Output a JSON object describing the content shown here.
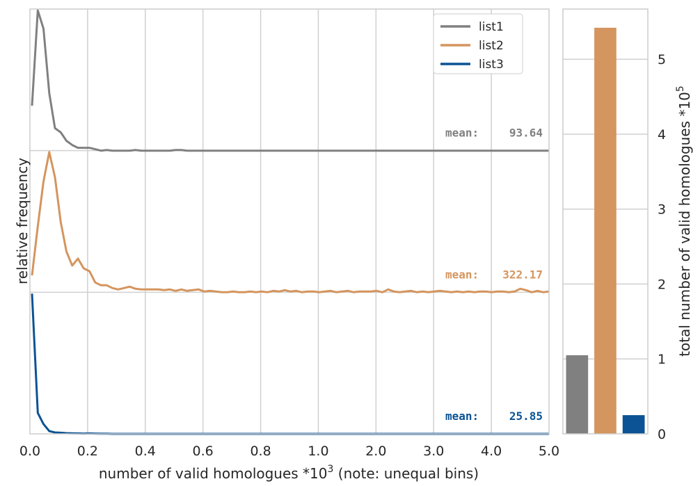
{
  "chart_data": [
    {
      "type": "line",
      "xlabel_main": "number of valid homologues *10",
      "xlabel_sup": "3",
      "xlabel_tail": " (note: unequal bins)",
      "ylabel": "relative frequency",
      "x_tick_labels": [
        "0.0",
        "0.2",
        "0.4",
        "0.6",
        "0.8",
        "1.0",
        "2.0",
        "3.0",
        "4.0",
        "5.0"
      ],
      "grid": true,
      "legend_position": "top-right",
      "series": [
        {
          "name": "list1",
          "color": "#808080",
          "mean_label": "mean:",
          "mean_value": "93.64",
          "values": [
            0.32,
            1.0,
            0.87,
            0.41,
            0.16,
            0.13,
            0.07,
            0.04,
            0.02,
            0.02,
            0.02,
            0.01,
            0.0,
            0.005,
            0.0,
            0.0,
            0.0,
            0.0,
            0.005,
            0.0,
            0.0,
            0.0,
            0.0,
            0.0,
            0.0,
            0.005,
            0.005,
            0.0,
            0.0,
            0.0,
            0.0,
            0.0,
            0.0,
            0.0,
            0.0,
            0.0,
            0.0,
            0.0,
            0.0,
            0.0,
            0.0,
            0.0,
            0.0,
            0.0,
            0.0,
            0.0,
            0.0,
            0.0,
            0.0,
            0.0,
            0.0,
            0.0,
            0.0,
            0.0,
            0.0,
            0.0,
            0.0,
            0.0,
            0.0,
            0.0,
            0.0,
            0.0,
            0.0,
            0.0,
            0.0,
            0.0,
            0.0,
            0.0,
            0.0,
            0.0,
            0.0,
            0.0,
            0.0,
            0.0,
            0.0,
            0.0,
            0.0,
            0.0,
            0.0,
            0.0,
            0.0,
            0.0,
            0.0,
            0.0,
            0.0,
            0.0,
            0.0,
            0.0,
            0.0,
            0.0,
            0.0
          ]
        },
        {
          "name": "list2",
          "color": "#d4955e",
          "mean_label": "mean:",
          "mean_value": "322.17",
          "values": [
            0.12,
            0.47,
            0.79,
            1.0,
            0.82,
            0.5,
            0.29,
            0.19,
            0.24,
            0.17,
            0.15,
            0.07,
            0.05,
            0.05,
            0.03,
            0.02,
            0.03,
            0.04,
            0.025,
            0.02,
            0.02,
            0.02,
            0.02,
            0.015,
            0.02,
            0.01,
            0.02,
            0.01,
            0.015,
            0.02,
            0.005,
            0.01,
            0.005,
            0.0,
            0.0,
            0.005,
            0.0,
            0.0,
            0.005,
            0.0,
            0.005,
            0.0,
            0.01,
            0.005,
            0.015,
            0.005,
            0.01,
            0.0,
            0.005,
            0.005,
            0.0,
            0.005,
            0.01,
            0.0,
            0.005,
            0.01,
            0.0,
            0.005,
            0.005,
            0.005,
            0.01,
            0.0,
            0.02,
            0.005,
            0.0,
            0.005,
            0.01,
            0.0,
            0.005,
            0.0,
            0.005,
            0.01,
            0.005,
            0.0,
            0.005,
            0.0,
            0.005,
            0.0,
            0.005,
            0.005,
            0.0,
            0.005,
            0.005,
            0.0,
            0.005,
            0.025,
            0.015,
            0.0,
            0.01,
            0.0,
            0.005
          ]
        },
        {
          "name": "list3",
          "color": "#0b5394",
          "mean_label": "mean:",
          "mean_value": "25.85",
          "values": [
            1.0,
            0.15,
            0.07,
            0.02,
            0.01,
            0.008,
            0.005,
            0.004,
            0.003,
            0.002,
            0.003,
            0.002,
            0.001,
            0.001,
            0.0,
            0.0,
            0.0,
            0.0,
            0.0,
            0.0,
            0.0,
            0.0,
            0.0,
            0.0,
            0.0,
            0.0,
            0.0,
            0.0,
            0.0,
            0.0,
            0.0,
            0.0,
            0.0,
            0.0,
            0.0,
            0.0,
            0.0,
            0.0,
            0.0,
            0.0,
            0.0,
            0.0,
            0.0,
            0.0,
            0.0,
            0.0,
            0.0,
            0.0,
            0.0,
            0.0,
            0.0,
            0.0,
            0.0,
            0.0,
            0.0,
            0.0,
            0.0,
            0.0,
            0.0,
            0.0,
            0.0,
            0.0,
            0.0,
            0.0,
            0.0,
            0.0,
            0.0,
            0.0,
            0.0,
            0.0,
            0.0,
            0.0,
            0.0,
            0.0,
            0.0,
            0.0,
            0.0,
            0.0,
            0.0,
            0.0,
            0.0,
            0.0,
            0.0,
            0.0,
            0.0,
            0.0,
            0.0,
            0.0,
            0.0,
            0.0,
            0.0
          ]
        }
      ]
    },
    {
      "type": "bar",
      "categories": [
        "list1",
        "list2",
        "list3"
      ],
      "values": [
        1.05,
        5.42,
        0.25
      ],
      "colors": [
        "#808080",
        "#d4955e",
        "#0b5394"
      ],
      "ylabel_main": "total number of valid homologues *10",
      "ylabel_sup": "5",
      "ylim": [
        0,
        5.67
      ],
      "y_ticks": [
        0,
        1,
        2,
        3,
        4,
        5
      ],
      "y_tick_labels": [
        "0",
        "1",
        "2",
        "3",
        "4",
        "5"
      ],
      "yaxis_position": "right",
      "grid": true
    }
  ]
}
